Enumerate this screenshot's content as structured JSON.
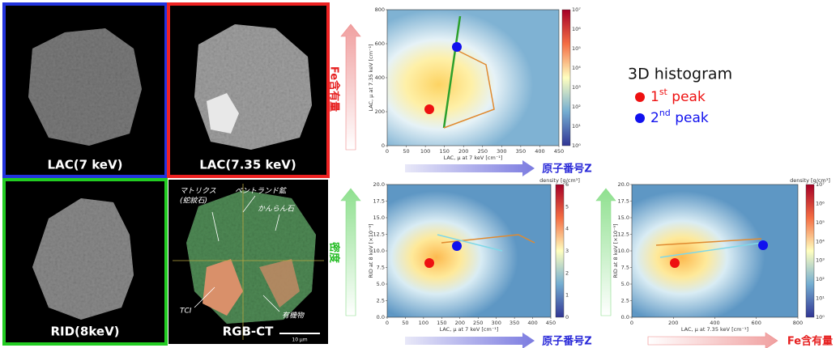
{
  "images": [
    {
      "label": "LAC(7 keV)"
    },
    {
      "label": "LAC(7.35 keV)"
    },
    {
      "label": "RID(8keV)"
    },
    {
      "label": "RGB-CT",
      "annotations": [
        "マトリクス",
        "(蛇紋石)",
        "ペントランド鉱",
        "かんらん石",
        "TCI",
        "有機物"
      ],
      "scale_bar": "10 μm"
    }
  ],
  "plots": [
    {
      "x_label": "LAC, μ at 7 keV [cm⁻¹]",
      "y_label": "LAC, μ at 7.35 keV [cm⁻¹]",
      "xticks": [
        "0",
        "50",
        "100",
        "150",
        "200",
        "250",
        "300",
        "350",
        "400",
        "450"
      ],
      "yticks": [
        "0",
        "200",
        "400",
        "600",
        "800"
      ],
      "colorbar_ticks": [
        "10⁰",
        "10¹",
        "10²",
        "10³",
        "10⁴",
        "10⁵",
        "10⁶",
        "10⁷"
      ]
    },
    {
      "x_label": "LAC, μ at 7 keV [cm⁻¹]",
      "y_label": "RID at 8 keV [×10⁻⁹]",
      "xticks": [
        "0",
        "50",
        "100",
        "150",
        "200",
        "250",
        "300",
        "350",
        "400",
        "450"
      ],
      "yticks": [
        "0.0",
        "2.5",
        "5.0",
        "7.5",
        "10.0",
        "12.5",
        "15.0",
        "17.5",
        "20.0"
      ],
      "colorbar_label": "density [g/cm³]",
      "colorbar_ticks": [
        "0",
        "1",
        "2",
        "3",
        "4",
        "5",
        "6"
      ]
    },
    {
      "x_label": "LAC, μ at 7.35 keV [cm⁻¹]",
      "y_label": "RID at 8 keV [×10⁻⁹]",
      "xticks": [
        "0",
        "200",
        "400",
        "600",
        "800"
      ],
      "yticks": [
        "0.0",
        "2.5",
        "5.0",
        "7.5",
        "10.0",
        "12.5",
        "15.0",
        "17.5",
        "20.0"
      ],
      "colorbar_label": "density [g/cm³]",
      "colorbar_ticks": [
        "10⁰",
        "10¹",
        "10²",
        "10³",
        "10⁴",
        "10⁵",
        "10⁶",
        "10⁷"
      ]
    }
  ],
  "arrows": [
    {
      "label": "Fe含有量"
    },
    {
      "label": "原子番号Z"
    },
    {
      "label": "密度"
    },
    {
      "label": "原子番号Z"
    },
    {
      "label": "Fe含有量"
    }
  ],
  "legend": {
    "title": "3D histogram",
    "items": [
      {
        "number": "1",
        "sup": "st",
        "text": " peak"
      },
      {
        "number": "2",
        "sup": "nd",
        "text": " peak"
      }
    ]
  }
}
